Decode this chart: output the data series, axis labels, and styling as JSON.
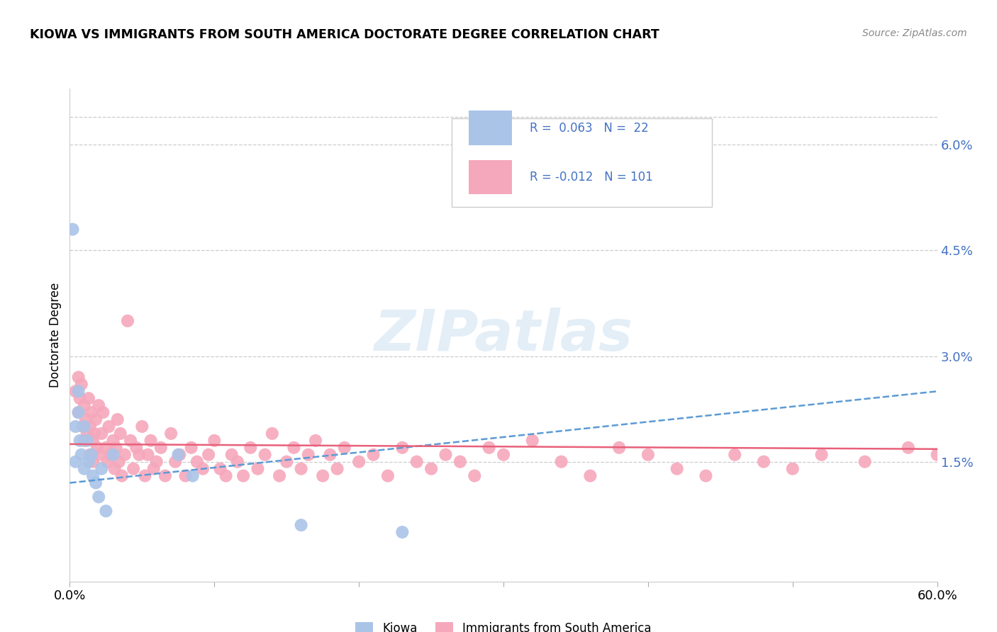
{
  "title": "KIOWA VS IMMIGRANTS FROM SOUTH AMERICA DOCTORATE DEGREE CORRELATION CHART",
  "source": "Source: ZipAtlas.com",
  "ylabel": "Doctorate Degree",
  "xmin": 0.0,
  "xmax": 0.6,
  "ymin": -0.002,
  "ymax": 0.068,
  "yticks": [
    0.015,
    0.03,
    0.045,
    0.06
  ],
  "ytick_labels": [
    "1.5%",
    "3.0%",
    "4.5%",
    "6.0%"
  ],
  "R_kiowa": 0.063,
  "N_kiowa": 22,
  "R_south_america": -0.012,
  "N_south_america": 101,
  "kiowa_color": "#aac4e8",
  "south_america_color": "#f5a8bc",
  "kiowa_line_color": "#5b9bd5",
  "south_america_line_color": "#e8607a",
  "legend_text_color": "#4472c4",
  "kiowa_x": [
    0.002,
    0.004,
    0.004,
    0.006,
    0.006,
    0.007,
    0.008,
    0.01,
    0.01,
    0.012,
    0.013,
    0.015,
    0.016,
    0.018,
    0.02,
    0.022,
    0.025,
    0.03,
    0.075,
    0.085,
    0.16,
    0.23
  ],
  "kiowa_y": [
    0.048,
    0.015,
    0.02,
    0.022,
    0.025,
    0.018,
    0.016,
    0.014,
    0.02,
    0.018,
    0.015,
    0.016,
    0.013,
    0.012,
    0.01,
    0.014,
    0.008,
    0.016,
    0.016,
    0.013,
    0.006,
    0.005
  ],
  "sa_x": [
    0.004,
    0.006,
    0.006,
    0.007,
    0.008,
    0.009,
    0.01,
    0.01,
    0.011,
    0.012,
    0.013,
    0.014,
    0.014,
    0.015,
    0.016,
    0.016,
    0.017,
    0.018,
    0.019,
    0.02,
    0.02,
    0.022,
    0.023,
    0.025,
    0.026,
    0.027,
    0.028,
    0.03,
    0.031,
    0.032,
    0.033,
    0.034,
    0.035,
    0.036,
    0.038,
    0.04,
    0.042,
    0.044,
    0.046,
    0.048,
    0.05,
    0.052,
    0.054,
    0.056,
    0.058,
    0.06,
    0.063,
    0.066,
    0.07,
    0.073,
    0.076,
    0.08,
    0.084,
    0.088,
    0.092,
    0.096,
    0.1,
    0.104,
    0.108,
    0.112,
    0.116,
    0.12,
    0.125,
    0.13,
    0.135,
    0.14,
    0.145,
    0.15,
    0.155,
    0.16,
    0.165,
    0.17,
    0.175,
    0.18,
    0.185,
    0.19,
    0.2,
    0.21,
    0.22,
    0.23,
    0.24,
    0.25,
    0.26,
    0.27,
    0.28,
    0.29,
    0.3,
    0.32,
    0.34,
    0.36,
    0.38,
    0.4,
    0.42,
    0.44,
    0.46,
    0.48,
    0.5,
    0.52,
    0.55,
    0.58,
    0.6
  ],
  "sa_y": [
    0.025,
    0.027,
    0.022,
    0.024,
    0.026,
    0.02,
    0.023,
    0.018,
    0.021,
    0.019,
    0.024,
    0.016,
    0.02,
    0.022,
    0.018,
    0.015,
    0.019,
    0.021,
    0.017,
    0.023,
    0.016,
    0.019,
    0.022,
    0.017,
    0.015,
    0.02,
    0.016,
    0.018,
    0.014,
    0.017,
    0.021,
    0.015,
    0.019,
    0.013,
    0.016,
    0.035,
    0.018,
    0.014,
    0.017,
    0.016,
    0.02,
    0.013,
    0.016,
    0.018,
    0.014,
    0.015,
    0.017,
    0.013,
    0.019,
    0.015,
    0.016,
    0.013,
    0.017,
    0.015,
    0.014,
    0.016,
    0.018,
    0.014,
    0.013,
    0.016,
    0.015,
    0.013,
    0.017,
    0.014,
    0.016,
    0.019,
    0.013,
    0.015,
    0.017,
    0.014,
    0.016,
    0.018,
    0.013,
    0.016,
    0.014,
    0.017,
    0.015,
    0.016,
    0.013,
    0.017,
    0.015,
    0.014,
    0.016,
    0.015,
    0.013,
    0.017,
    0.016,
    0.018,
    0.015,
    0.013,
    0.017,
    0.016,
    0.014,
    0.013,
    0.016,
    0.015,
    0.014,
    0.016,
    0.015,
    0.017,
    0.016
  ],
  "kiowa_trend_x": [
    0.0,
    0.6
  ],
  "kiowa_trend_y": [
    0.012,
    0.025
  ],
  "sa_trend_x": [
    0.0,
    0.6
  ],
  "sa_trend_y": [
    0.0175,
    0.0168
  ]
}
